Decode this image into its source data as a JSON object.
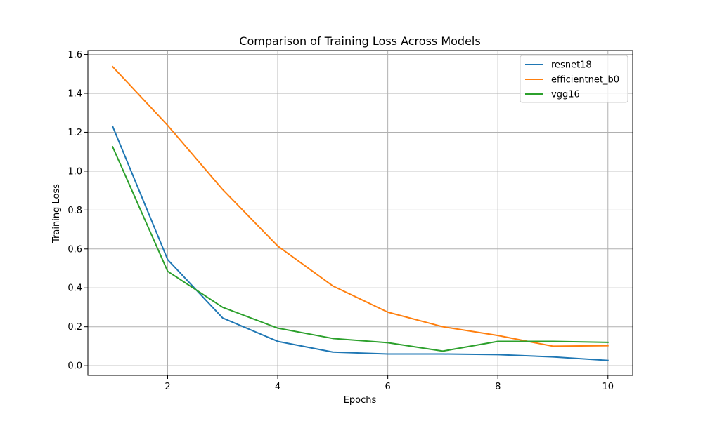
{
  "chart_data": {
    "type": "line",
    "title": "Comparison of Training Loss Across Models",
    "xlabel": "Epochs",
    "ylabel": "Training Loss",
    "x": [
      1,
      2,
      3,
      4,
      5,
      6,
      7,
      8,
      9,
      10
    ],
    "xlim": [
      0.55,
      10.45
    ],
    "ylim": [
      -0.05,
      1.62
    ],
    "xticks": [
      2,
      4,
      6,
      8,
      10
    ],
    "yticks": [
      0.0,
      0.2,
      0.4,
      0.6,
      0.8,
      1.0,
      1.2,
      1.4,
      1.6
    ],
    "xtick_labels": [
      "2",
      "4",
      "6",
      "8",
      "10"
    ],
    "ytick_labels": [
      "0.0",
      "0.2",
      "0.4",
      "0.6",
      "0.8",
      "1.0",
      "1.2",
      "1.4",
      "1.6"
    ],
    "grid": true,
    "legend_position": "top-right",
    "series": [
      {
        "name": "resnet18",
        "color": "#1f77b4",
        "values": [
          1.23,
          0.545,
          0.245,
          0.125,
          0.07,
          0.06,
          0.06,
          0.057,
          0.045,
          0.027
        ]
      },
      {
        "name": "efficientnet_b0",
        "color": "#ff7f0e",
        "values": [
          1.537,
          1.235,
          0.905,
          0.615,
          0.41,
          0.275,
          0.2,
          0.155,
          0.1,
          0.103
        ]
      },
      {
        "name": "vgg16",
        "color": "#2ca02c",
        "values": [
          1.125,
          0.485,
          0.3,
          0.193,
          0.14,
          0.118,
          0.075,
          0.125,
          0.125,
          0.12
        ]
      }
    ]
  }
}
